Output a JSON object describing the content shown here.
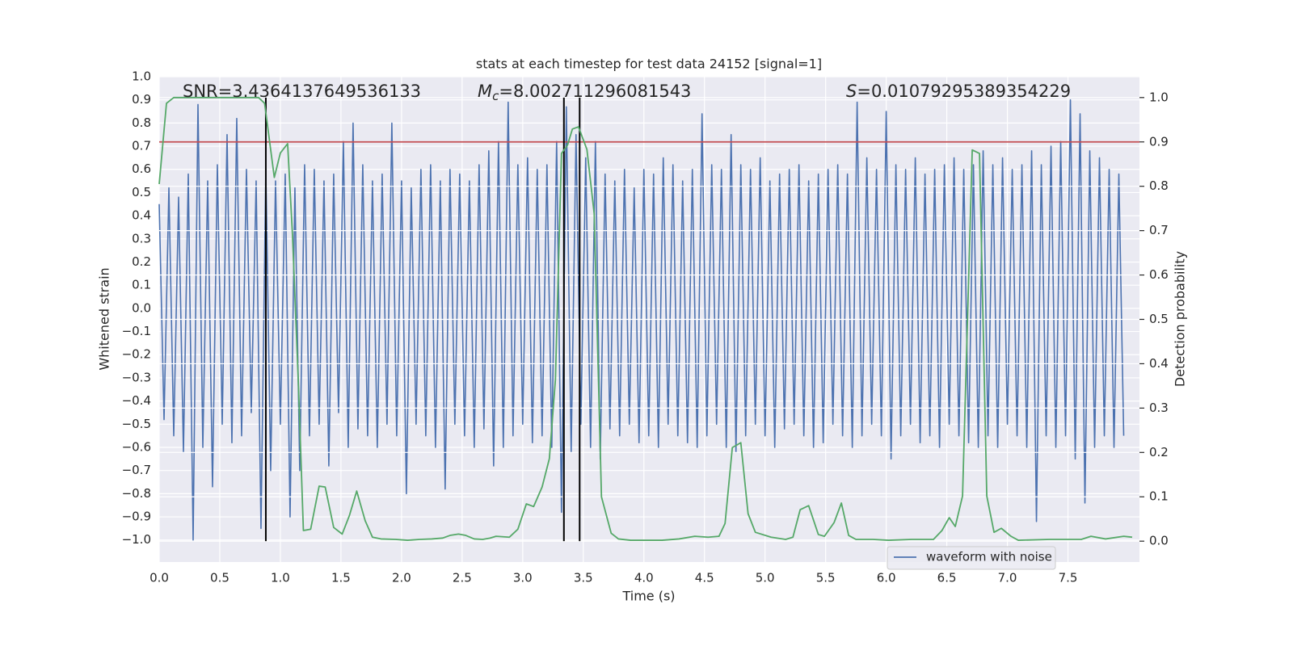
{
  "chart_data": {
    "type": "line",
    "title": "stats at each timestep for test data 24152 [signal=1]",
    "x_label": "Time (s)",
    "y_label": "Whitened strain",
    "y2_label": "Detection probability",
    "xlim": [
      0,
      8.09
    ],
    "ylim": [
      -1.095,
      1.0
    ],
    "y2lim": [
      -0.047,
      1.047
    ],
    "xticks": [
      {
        "value": 0,
        "label": "0.0"
      },
      0.5,
      {
        "value": 1,
        "label": "1.0"
      },
      1.5,
      {
        "value": 2,
        "label": "2.0"
      },
      2.5,
      {
        "value": 3,
        "label": "3.0"
      },
      3.5,
      {
        "value": 4,
        "label": "4.0"
      },
      4.5,
      {
        "value": 5,
        "label": "5.0"
      },
      5.5,
      {
        "value": 6,
        "label": "6.0"
      },
      6.5,
      {
        "value": 7,
        "label": "7.0"
      },
      7.5
    ],
    "yticks": [
      {
        "value": -1,
        "label": "−1.0"
      },
      {
        "value": -0.9,
        "label": "−0.9"
      },
      {
        "value": -0.8,
        "label": "−0.8"
      },
      {
        "value": -0.7,
        "label": "−0.7"
      },
      {
        "value": -0.6,
        "label": "−0.6"
      },
      {
        "value": -0.5,
        "label": "−0.5"
      },
      {
        "value": -0.4,
        "label": "−0.4"
      },
      {
        "value": -0.3,
        "label": "−0.3"
      },
      {
        "value": -0.2,
        "label": "−0.2"
      },
      {
        "value": -0.1,
        "label": "−0.1"
      },
      {
        "value": 0,
        "label": "0.0"
      },
      0.1,
      0.2,
      0.3,
      0.4,
      0.5,
      0.6,
      0.7,
      0.8,
      0.9,
      {
        "value": 1,
        "label": "1.0"
      }
    ],
    "y2ticks": [
      {
        "value": 0,
        "label": "0.0"
      },
      0.1,
      0.2,
      0.3,
      0.4,
      0.5,
      0.6,
      0.7,
      0.8,
      0.9,
      {
        "value": 1,
        "label": "1.0"
      }
    ],
    "grid": true,
    "legend": "lower right",
    "series": [
      {
        "name": "waveform with noise",
        "color": "#4c72b0",
        "x": [
          0,
          0.04,
          0.08,
          0.12,
          0.16,
          0.2,
          0.24,
          0.28,
          0.32,
          0.36,
          0.4,
          0.44,
          0.48,
          0.52,
          0.56,
          0.6,
          0.64,
          0.68,
          0.72,
          0.76,
          0.8,
          0.84,
          0.88,
          0.92,
          0.96,
          1,
          1.04,
          1.08,
          1.12,
          1.16,
          1.2,
          1.24,
          1.28,
          1.32,
          1.36,
          1.4,
          1.44,
          1.48,
          1.52,
          1.56,
          1.6,
          1.64,
          1.68,
          1.72,
          1.76,
          1.8,
          1.84,
          1.88,
          1.92,
          1.96,
          2,
          2.04,
          2.08,
          2.12,
          2.16,
          2.2,
          2.24,
          2.28,
          2.32,
          2.36,
          2.4,
          2.44,
          2.48,
          2.52,
          2.56,
          2.6,
          2.64,
          2.68,
          2.72,
          2.76,
          2.8,
          2.84,
          2.88,
          2.92,
          2.96,
          3,
          3.04,
          3.08,
          3.12,
          3.16,
          3.2,
          3.24,
          3.28,
          3.32,
          3.36,
          3.4,
          3.44,
          3.48,
          3.52,
          3.56,
          3.6,
          3.64,
          3.68,
          3.72,
          3.76,
          3.8,
          3.84,
          3.88,
          3.92,
          3.96,
          4,
          4.04,
          4.08,
          4.12,
          4.16,
          4.2,
          4.24,
          4.28,
          4.32,
          4.36,
          4.4,
          4.44,
          4.48,
          4.52,
          4.56,
          4.6,
          4.64,
          4.68,
          4.72,
          4.76,
          4.8,
          4.84,
          4.88,
          4.92,
          4.96,
          5,
          5.04,
          5.08,
          5.12,
          5.16,
          5.2,
          5.24,
          5.28,
          5.32,
          5.36,
          5.4,
          5.44,
          5.48,
          5.52,
          5.56,
          5.6,
          5.64,
          5.68,
          5.72,
          5.76,
          5.8,
          5.84,
          5.88,
          5.92,
          5.96,
          6,
          6.04,
          6.08,
          6.12,
          6.16,
          6.2,
          6.24,
          6.28,
          6.32,
          6.36,
          6.4,
          6.44,
          6.48,
          6.52,
          6.56,
          6.6,
          6.64,
          6.68,
          6.72,
          6.76,
          6.8,
          6.84,
          6.88,
          6.92,
          6.96,
          7,
          7.04,
          7.08,
          7.12,
          7.16,
          7.2,
          7.24,
          7.28,
          7.32,
          7.36,
          7.4,
          7.44,
          7.48,
          7.52,
          7.56,
          7.6,
          7.64,
          7.68,
          7.72,
          7.76,
          7.8,
          7.84,
          7.88,
          7.92,
          7.96
        ],
        "values": [
          0.45,
          -0.48,
          0.52,
          -0.55,
          0.48,
          -0.62,
          0.58,
          -1.0,
          0.88,
          -0.6,
          0.55,
          -0.77,
          0.62,
          -0.5,
          0.75,
          -0.58,
          0.82,
          -0.55,
          0.6,
          -0.45,
          0.55,
          -0.95,
          0.6,
          -0.7,
          0.55,
          -0.5,
          0.58,
          -0.9,
          0.52,
          -0.7,
          0.62,
          -0.55,
          0.6,
          -0.5,
          0.55,
          -0.68,
          0.58,
          -0.45,
          0.72,
          -0.6,
          0.8,
          -0.52,
          0.62,
          -0.55,
          0.55,
          -0.6,
          0.58,
          -0.5,
          0.8,
          -0.55,
          0.55,
          -0.8,
          0.52,
          -0.5,
          0.6,
          -0.55,
          0.62,
          -0.6,
          0.55,
          -0.78,
          0.6,
          -0.5,
          0.58,
          -0.55,
          0.55,
          -0.6,
          0.62,
          -0.52,
          0.68,
          -0.68,
          0.72,
          -0.6,
          0.89,
          -0.55,
          0.62,
          -0.5,
          0.65,
          -0.58,
          0.6,
          -0.55,
          0.62,
          -0.6,
          0.72,
          -0.88,
          0.87,
          -0.62,
          0.75,
          -0.5,
          0.65,
          -0.6,
          0.72,
          -0.65,
          0.58,
          -0.52,
          0.55,
          -0.55,
          0.6,
          -0.5,
          0.52,
          -0.58,
          0.6,
          -0.55,
          0.58,
          -0.6,
          0.65,
          -0.5,
          0.62,
          -0.55,
          0.55,
          -0.58,
          0.6,
          -0.6,
          0.84,
          -0.55,
          0.62,
          -0.5,
          0.6,
          -0.6,
          0.75,
          -0.62,
          0.62,
          -0.55,
          0.6,
          -0.5,
          0.65,
          -0.55,
          0.55,
          -0.6,
          0.58,
          -0.52,
          0.6,
          -0.5,
          0.62,
          -0.55,
          0.55,
          -0.6,
          0.58,
          -0.58,
          0.6,
          -0.5,
          0.62,
          -0.55,
          0.58,
          -0.6,
          0.89,
          -0.55,
          0.65,
          -0.5,
          0.6,
          -0.55,
          0.85,
          -0.65,
          0.62,
          -0.55,
          0.6,
          -0.5,
          0.65,
          -0.58,
          0.58,
          -0.55,
          0.6,
          -0.6,
          0.62,
          -0.5,
          0.65,
          -0.55,
          0.6,
          -0.58,
          0.62,
          -0.6,
          0.68,
          -0.55,
          0.62,
          -0.6,
          0.65,
          -0.5,
          0.6,
          -0.55,
          0.62,
          -0.6,
          0.68,
          -0.92,
          0.62,
          -0.55,
          0.7,
          -0.6,
          0.72,
          -0.55,
          0.9,
          -0.65,
          0.84,
          -0.84,
          0.68,
          -0.6,
          0.65,
          -0.55,
          0.6,
          -0.6,
          0.58,
          -0.55
        ]
      },
      {
        "color": "#55a868",
        "axis": "y2",
        "x": [
          0,
          0.06,
          0.12,
          0.82,
          0.87,
          0.95,
          1.0,
          1.06,
          1.1,
          1.15,
          1.19,
          1.25,
          1.32,
          1.37,
          1.44,
          1.51,
          1.57,
          1.63,
          1.7,
          1.76,
          1.83,
          1.95,
          2.05,
          2.15,
          2.25,
          2.34,
          2.4,
          2.47,
          2.53,
          2.6,
          2.67,
          2.73,
          2.78,
          2.89,
          2.96,
          3.03,
          3.09,
          3.16,
          3.22,
          3.27,
          3.32,
          3.37,
          3.41,
          3.46,
          3.53,
          3.59,
          3.65,
          3.73,
          3.79,
          3.89,
          4.02,
          4.15,
          4.29,
          4.42,
          4.53,
          4.62,
          4.67,
          4.73,
          4.8,
          4.86,
          4.92,
          5.05,
          5.17,
          5.23,
          5.29,
          5.36,
          5.44,
          5.49,
          5.57,
          5.63,
          5.69,
          5.75,
          5.89,
          6.02,
          6.21,
          6.39,
          6.46,
          6.52,
          6.57,
          6.63,
          6.71,
          6.77,
          6.83,
          6.89,
          6.95,
          7.03,
          7.09,
          7.35,
          7.61,
          7.69,
          7.81,
          7.96,
          8.03
        ],
        "values": [
          0.805,
          0.987,
          1.0,
          1.0,
          0.987,
          0.82,
          0.875,
          0.896,
          0.69,
          0.346,
          0.024,
          0.027,
          0.124,
          0.122,
          0.031,
          0.016,
          0.058,
          0.113,
          0.046,
          0.009,
          0.005,
          0.004,
          0.002,
          0.004,
          0.005,
          0.007,
          0.013,
          0.016,
          0.013,
          0.005,
          0.004,
          0.007,
          0.011,
          0.009,
          0.027,
          0.084,
          0.078,
          0.122,
          0.186,
          0.364,
          0.874,
          0.893,
          0.929,
          0.934,
          0.883,
          0.738,
          0.1,
          0.018,
          0.005,
          0.002,
          0.002,
          0.002,
          0.005,
          0.011,
          0.009,
          0.011,
          0.04,
          0.211,
          0.222,
          0.062,
          0.02,
          0.009,
          0.004,
          0.009,
          0.071,
          0.08,
          0.015,
          0.011,
          0.042,
          0.086,
          0.013,
          0.004,
          0.004,
          0.002,
          0.004,
          0.004,
          0.024,
          0.053,
          0.033,
          0.102,
          0.882,
          0.874,
          0.102,
          0.02,
          0.029,
          0.011,
          0.002,
          0.004,
          0.004,
          0.011,
          0.005,
          0.011,
          0.009
        ]
      }
    ],
    "hline": {
      "value": 0.9,
      "axis": "y2",
      "color": "#c44e52"
    },
    "vlines": {
      "x": [
        0.88,
        3.34,
        3.47
      ],
      "ymin": 0,
      "ymax": 1,
      "axis": "y2",
      "color": "#000000"
    },
    "annotations": [
      {
        "text": "SNR=3.4364137649536133"
      },
      {
        "symbol": "M",
        "subscript": "c",
        "text": "=8.002711296081543"
      },
      {
        "symbol": "S",
        "text": "=0.01079295389354229"
      }
    ]
  }
}
